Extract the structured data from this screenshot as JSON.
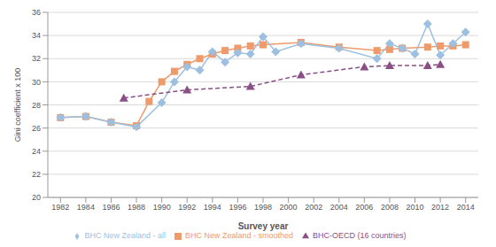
{
  "chart_data": {
    "type": "line",
    "x_label": "Survey year",
    "y_label": "Gini coefficient x 100",
    "xlim": [
      1981,
      2015
    ],
    "xticks": [
      1982,
      1984,
      1986,
      1988,
      1990,
      1992,
      1994,
      1996,
      1998,
      2000,
      2002,
      2004,
      2006,
      2008,
      2010,
      2012,
      2014
    ],
    "ylim": [
      20,
      36
    ],
    "yticks": [
      20,
      22,
      24,
      26,
      28,
      30,
      32,
      34,
      36
    ],
    "grid": true,
    "legend": "bottom",
    "series": [
      {
        "name": "BHC New Zealand - smoothed",
        "color": "#ee9a6a",
        "marker": "square",
        "line_style": "solid",
        "x": [
          1982,
          1984,
          1986,
          1988,
          1989,
          1990,
          1991,
          1992,
          1993,
          1994,
          1995,
          1996,
          1997,
          1998,
          2001,
          2004,
          2007,
          2008,
          2009,
          2011,
          2012,
          2013,
          2014
        ],
        "values": [
          26.9,
          27.0,
          26.5,
          26.2,
          28.3,
          30.0,
          30.9,
          31.5,
          32.0,
          32.4,
          32.7,
          32.9,
          33.1,
          33.2,
          33.4,
          33.0,
          32.7,
          32.8,
          32.9,
          33.0,
          33.1,
          33.1,
          33.2
        ]
      },
      {
        "name": "BHC New Zealand - all",
        "color": "#9dbfe0",
        "marker": "diamond",
        "line_style": "solid",
        "x": [
          1982,
          1984,
          1986,
          1988,
          1990,
          1991,
          1992,
          1993,
          1994,
          1995,
          1996,
          1997,
          1998,
          1999,
          2001,
          2004,
          2007,
          2008,
          2009,
          2010,
          2011,
          2012,
          2013,
          2014
        ],
        "values": [
          26.9,
          27.0,
          26.5,
          26.1,
          28.2,
          30.0,
          31.3,
          31.0,
          32.6,
          31.7,
          32.5,
          32.4,
          33.9,
          32.6,
          33.3,
          32.9,
          32.0,
          33.3,
          32.9,
          32.4,
          35.0,
          32.3,
          33.3,
          34.3
        ]
      },
      {
        "name": "BHC-OECD (16 countries)",
        "color": "#8a4f86",
        "marker": "triangle",
        "line_style": "dashed",
        "x": [
          1987,
          1992,
          1997,
          2001,
          2006,
          2008,
          2011,
          2012
        ],
        "values": [
          28.6,
          29.3,
          29.6,
          30.6,
          31.3,
          31.4,
          31.4,
          31.5
        ]
      }
    ]
  }
}
